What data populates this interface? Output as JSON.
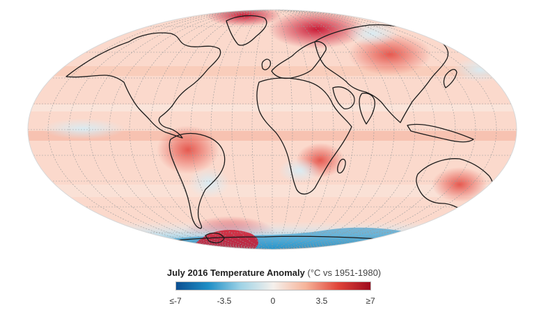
{
  "map": {
    "projection": "mollweide",
    "graticule": "dashed"
  },
  "legend": {
    "title_bold": "July 2016 Temperature Anomaly",
    "title_rest": "(°C vs 1951-1980)",
    "ticks": [
      "≤-7",
      "-3.5",
      "0",
      "3.5",
      "≥7"
    ],
    "range": [
      -7,
      7
    ],
    "colors": [
      "#0b4f91",
      "#1f8fc6",
      "#9fd3e6",
      "#f5f0ec",
      "#f6b49a",
      "#e0453a",
      "#9e0b1e"
    ]
  }
}
